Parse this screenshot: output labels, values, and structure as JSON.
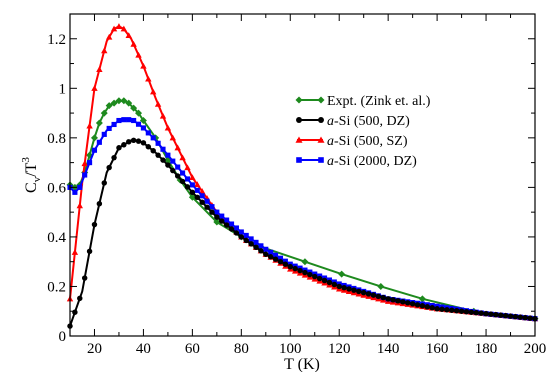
{
  "chart_data": {
    "type": "line",
    "xlabel": "T (K)",
    "ylabel_main": "C",
    "ylabel_sub": "v",
    "ylabel_div": "/T",
    "ylabel_sup": "3",
    "xlim": [
      10,
      200
    ],
    "ylim": [
      0,
      1.3
    ],
    "xticks": [
      20,
      40,
      60,
      80,
      100,
      120,
      140,
      160,
      180,
      200
    ],
    "xtick_labels": [
      "20",
      "40",
      "60",
      "80",
      "100",
      "120",
      "140",
      "160",
      "180",
      "200"
    ],
    "yticks": [
      0,
      0.2,
      0.4,
      0.6,
      0.8,
      1.0,
      1.2
    ],
    "ytick_labels": [
      "0",
      "0.2",
      "0.4",
      "0.6",
      "0.8",
      "1",
      "1.2"
    ],
    "grid": false,
    "legend_position": "upper-right",
    "series": [
      {
        "name": "Expt. (Zink et. al.)",
        "name_italic": "",
        "name_rest": "Expt. (Zink et. al.)",
        "color": "#1e8a1e",
        "marker": "diamond",
        "x": [
          10,
          12,
          14,
          16,
          18,
          20,
          22,
          24,
          26,
          28,
          30,
          32,
          34,
          36,
          38,
          40,
          45,
          50,
          55,
          60,
          70,
          80,
          88,
          106,
          121,
          137,
          154,
          175,
          200
        ],
        "y": [
          0.61,
          0.6,
          0.61,
          0.66,
          0.73,
          0.8,
          0.86,
          0.9,
          0.93,
          0.94,
          0.95,
          0.95,
          0.94,
          0.92,
          0.9,
          0.87,
          0.8,
          0.71,
          0.63,
          0.56,
          0.46,
          0.4,
          0.36,
          0.3,
          0.25,
          0.2,
          0.15,
          0.1,
          0.07
        ]
      },
      {
        "name": "a-Si (500, DZ)",
        "name_italic": "a",
        "name_rest": "-Si (500, DZ)",
        "color": "#000000",
        "marker": "circle",
        "x": [
          10,
          15,
          20,
          25,
          30,
          35,
          37,
          40,
          45,
          50,
          60,
          70,
          80,
          90,
          100,
          120,
          140,
          160,
          180,
          200
        ],
        "y": [
          0.04,
          0.18,
          0.45,
          0.66,
          0.76,
          0.79,
          0.79,
          0.78,
          0.74,
          0.69,
          0.58,
          0.48,
          0.4,
          0.33,
          0.28,
          0.2,
          0.15,
          0.11,
          0.09,
          0.07
        ]
      },
      {
        "name": "a-Si (500, SZ)",
        "name_italic": "a",
        "name_rest": "-Si (500, SZ)",
        "color": "#ff0000",
        "marker": "triangle",
        "x": [
          10,
          15,
          20,
          25,
          28,
          30,
          32,
          35,
          40,
          45,
          50,
          60,
          70,
          80,
          90,
          100,
          120,
          140,
          160,
          180,
          200
        ],
        "y": [
          0.15,
          0.62,
          1.0,
          1.19,
          1.24,
          1.25,
          1.24,
          1.2,
          1.09,
          0.96,
          0.84,
          0.64,
          0.5,
          0.4,
          0.33,
          0.27,
          0.19,
          0.14,
          0.11,
          0.09,
          0.07
        ]
      },
      {
        "name": "a-Si (2000, DZ)",
        "name_italic": "a",
        "name_rest": "-Si (2000, DZ)",
        "color": "#0000ff",
        "marker": "square",
        "x": [
          10,
          12,
          14,
          16,
          18,
          20,
          25,
          30,
          33,
          36,
          40,
          45,
          50,
          60,
          70,
          80,
          90,
          100,
          120,
          140,
          160,
          180,
          200
        ],
        "y": [
          0.6,
          0.58,
          0.6,
          0.65,
          0.7,
          0.75,
          0.83,
          0.87,
          0.875,
          0.87,
          0.84,
          0.79,
          0.73,
          0.61,
          0.5,
          0.42,
          0.35,
          0.29,
          0.21,
          0.15,
          0.12,
          0.09,
          0.07
        ]
      }
    ]
  }
}
